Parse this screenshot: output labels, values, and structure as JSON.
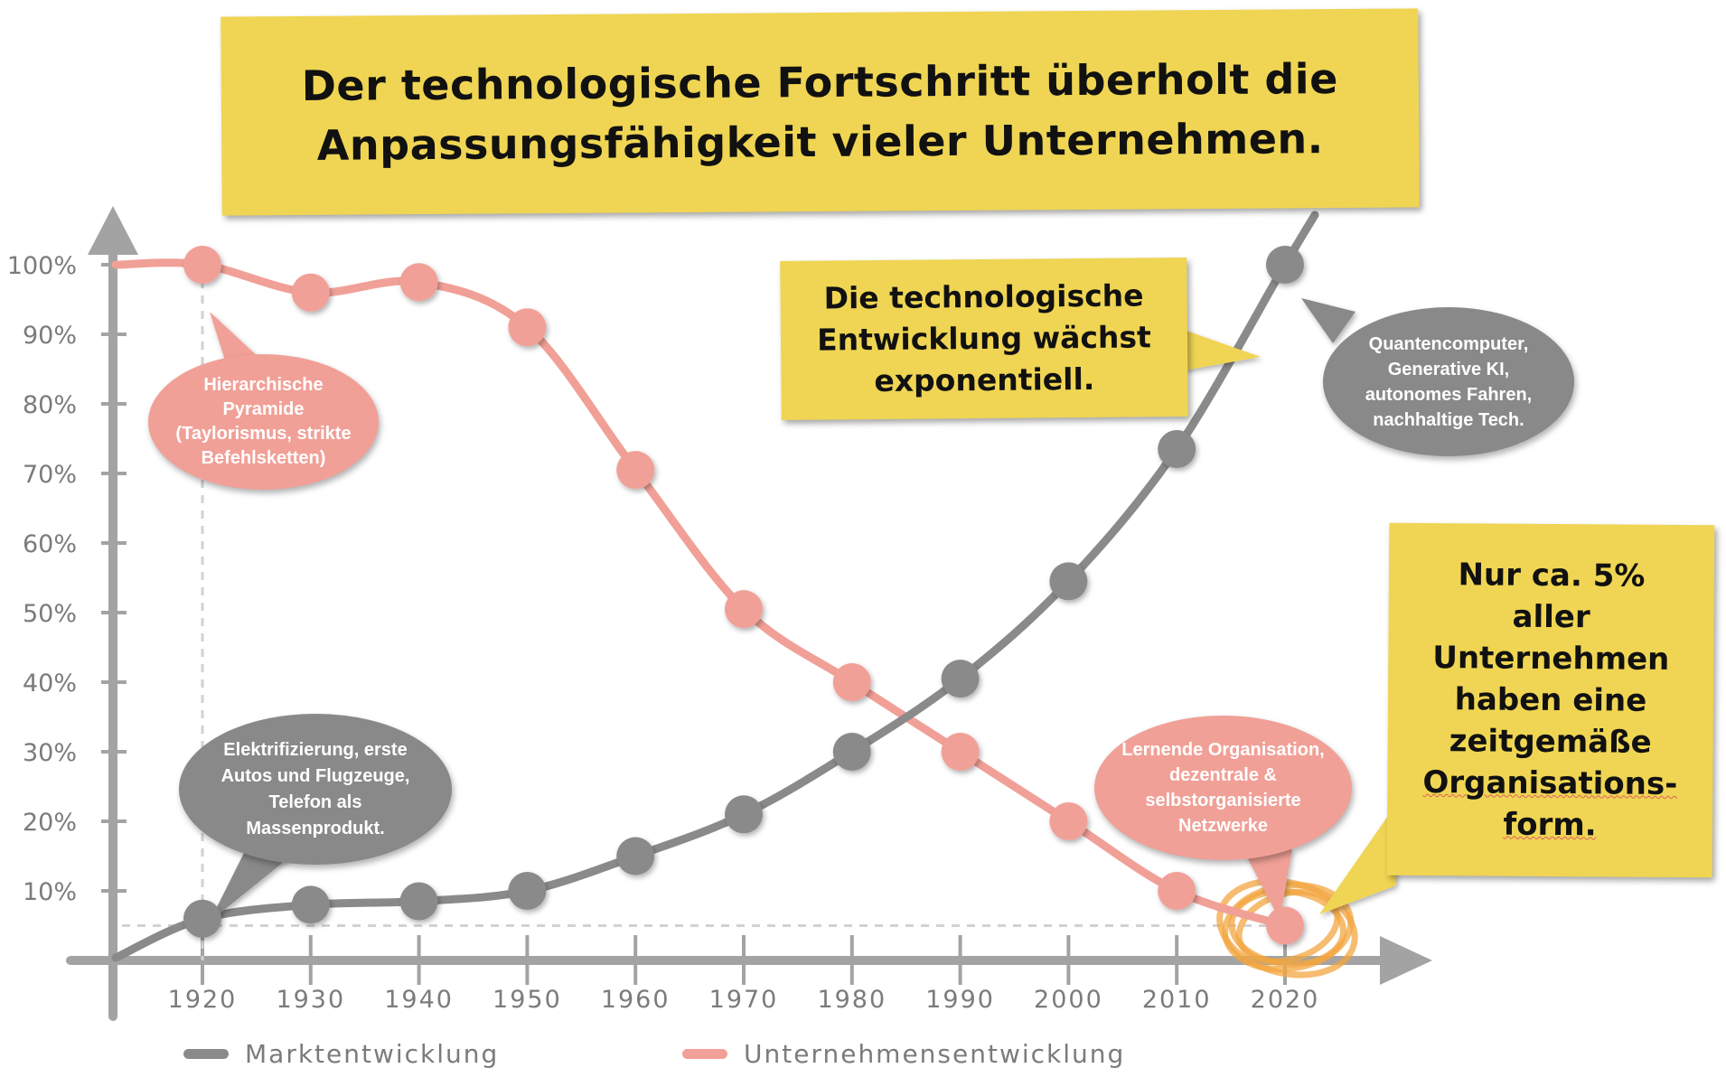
{
  "title": "Der technologische Fortschritt überholt die Anpassungsfähigkeit vieler Unternehmen.",
  "tech_note": "Die technologische Entwicklung wächst exponentiell.",
  "orga_note": {
    "line1": "Nur ca. 5% aller",
    "line2": "Unternehmen",
    "line3": "haben eine",
    "line4": "zeitgemäße",
    "line5": "Organisations-",
    "line6": "form."
  },
  "bubbles": {
    "pyramid": "Hierarchische Pyramide (Taylorismus, strikte Befehlsketten)",
    "electrification": "Elektrifizierung, erste Autos und Flugzeuge, Telefon als Massenprodukt.",
    "quantum": "Quantencomputer, Generative KI, autonomes Fahren, nachhaltige Tech.",
    "learning": "Lernende Organisation, dezentrale & selbstorganisierte Netzwerke"
  },
  "colors": {
    "market": "#8a8a8a",
    "company": "#f1a097",
    "axis": "#a3a3a3",
    "note": "#efd553",
    "highlight": "#f3a640"
  },
  "chart_data": {
    "type": "line",
    "categories": [
      "1920",
      "1930",
      "1940",
      "1950",
      "1960",
      "1970",
      "1980",
      "1990",
      "2000",
      "2010",
      "2020"
    ],
    "x": [
      1920,
      1930,
      1940,
      1950,
      1960,
      1970,
      1980,
      1990,
      2000,
      2010,
      2020
    ],
    "yticks": [
      "10%",
      "20%",
      "30%",
      "40%",
      "50%",
      "60%",
      "70%",
      "80%",
      "90%",
      "100%"
    ],
    "ylim": [
      0,
      100
    ],
    "series": [
      {
        "name": "Marktentwicklung",
        "values": [
          6,
          8,
          8.5,
          10,
          15,
          21,
          30,
          40.5,
          54.5,
          73.5,
          100
        ]
      },
      {
        "name": "Unternehmensentwicklung",
        "values": [
          100,
          96,
          97.5,
          91,
          70.5,
          50.5,
          40,
          30,
          20,
          10,
          5
        ]
      }
    ],
    "legend": "bottom-left",
    "grid": false
  }
}
